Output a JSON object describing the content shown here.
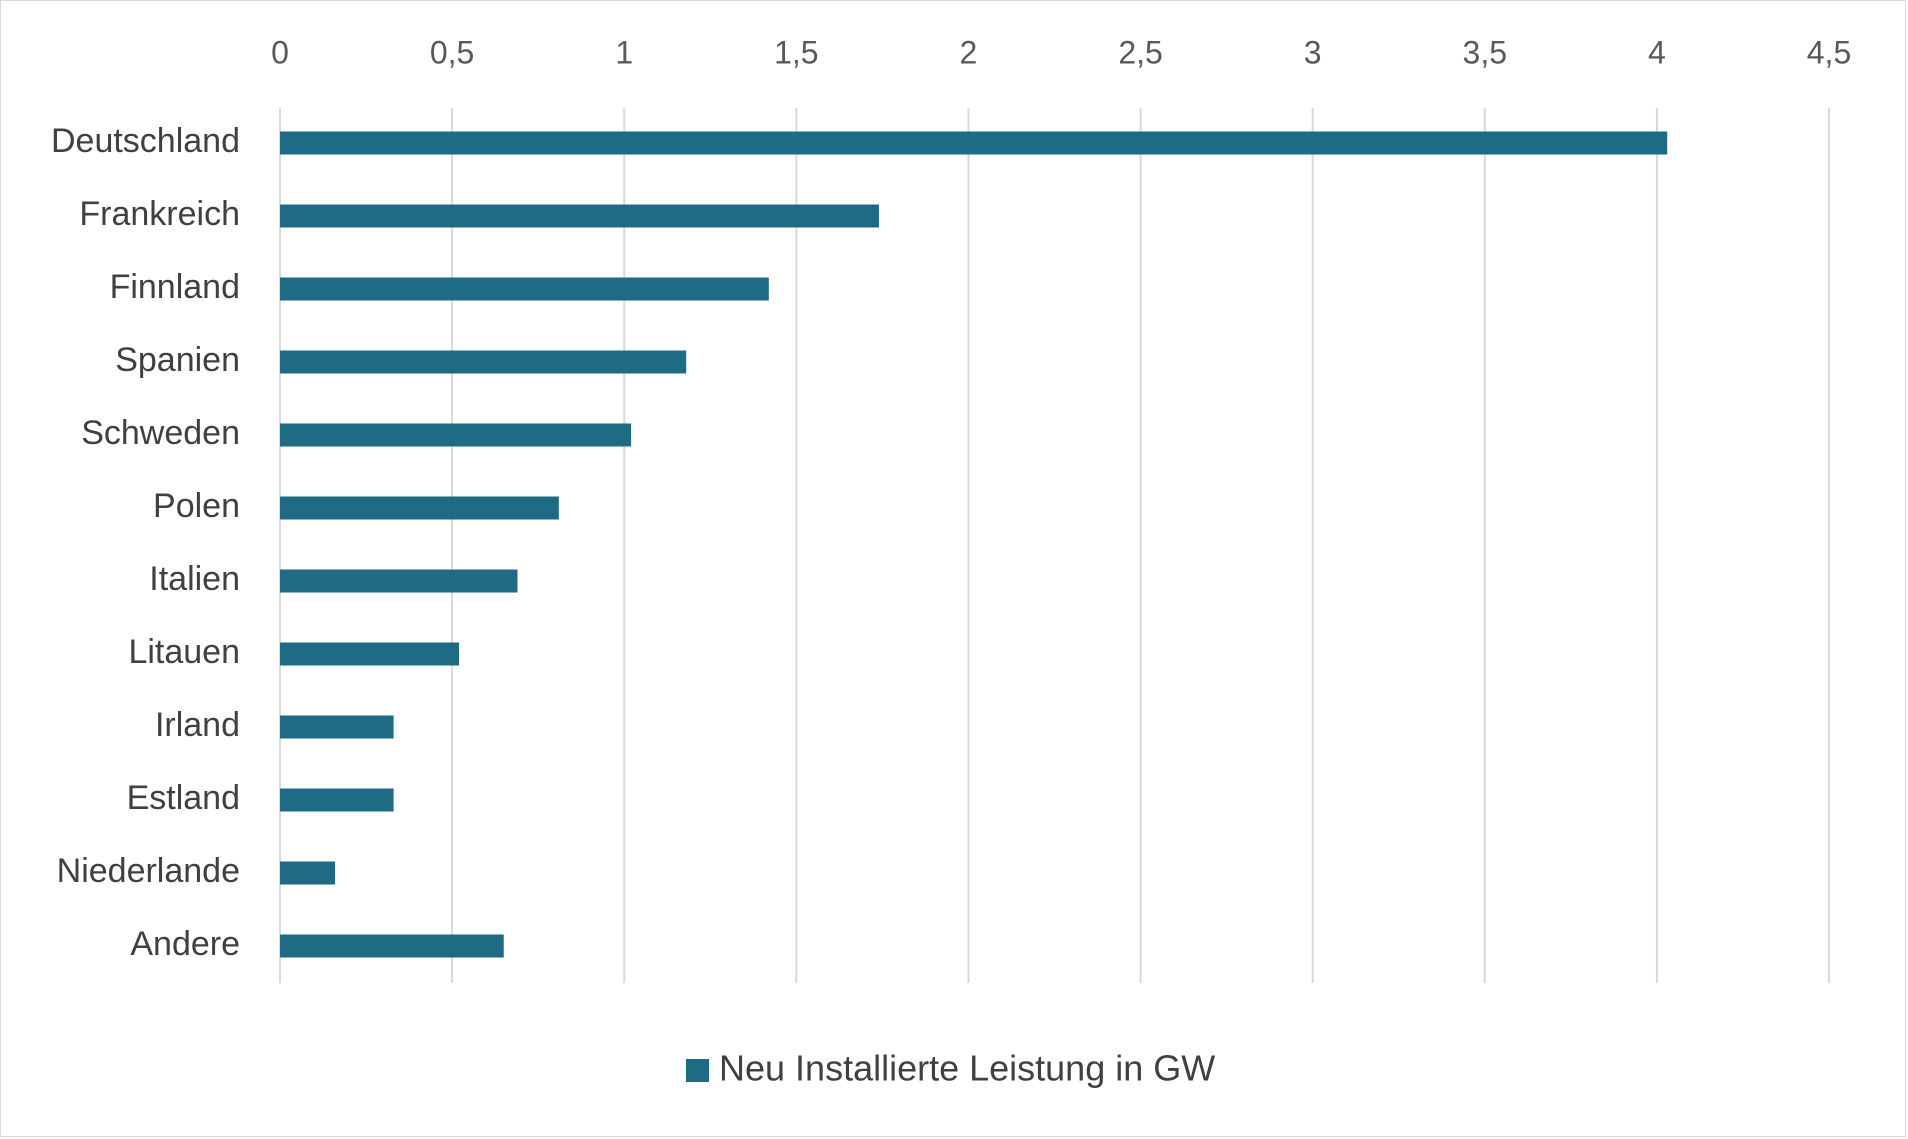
{
  "chart_data": {
    "type": "bar",
    "orientation": "horizontal",
    "categories": [
      "Deutschland",
      "Frankreich",
      "Finnland",
      "Spanien",
      "Schweden",
      "Polen",
      "Italien",
      "Litauen",
      "Irland",
      "Estland",
      "Niederlande",
      "Andere"
    ],
    "series": [
      {
        "name": "Neu Installierte Leistung in GW",
        "color": "#1f6b85",
        "values": [
          4.03,
          1.74,
          1.42,
          1.18,
          1.02,
          0.81,
          0.69,
          0.52,
          0.33,
          0.33,
          0.16,
          0.65
        ]
      }
    ],
    "xlim": [
      0,
      4.5
    ],
    "xticks": [
      "0",
      "0,5",
      "1",
      "1,5",
      "2",
      "2,5",
      "3",
      "3,5",
      "4",
      "4,5"
    ],
    "xaxis_position": "top",
    "grid": "vertical",
    "legend": "bottom-center",
    "title": "",
    "xlabel": "",
    "ylabel": ""
  }
}
